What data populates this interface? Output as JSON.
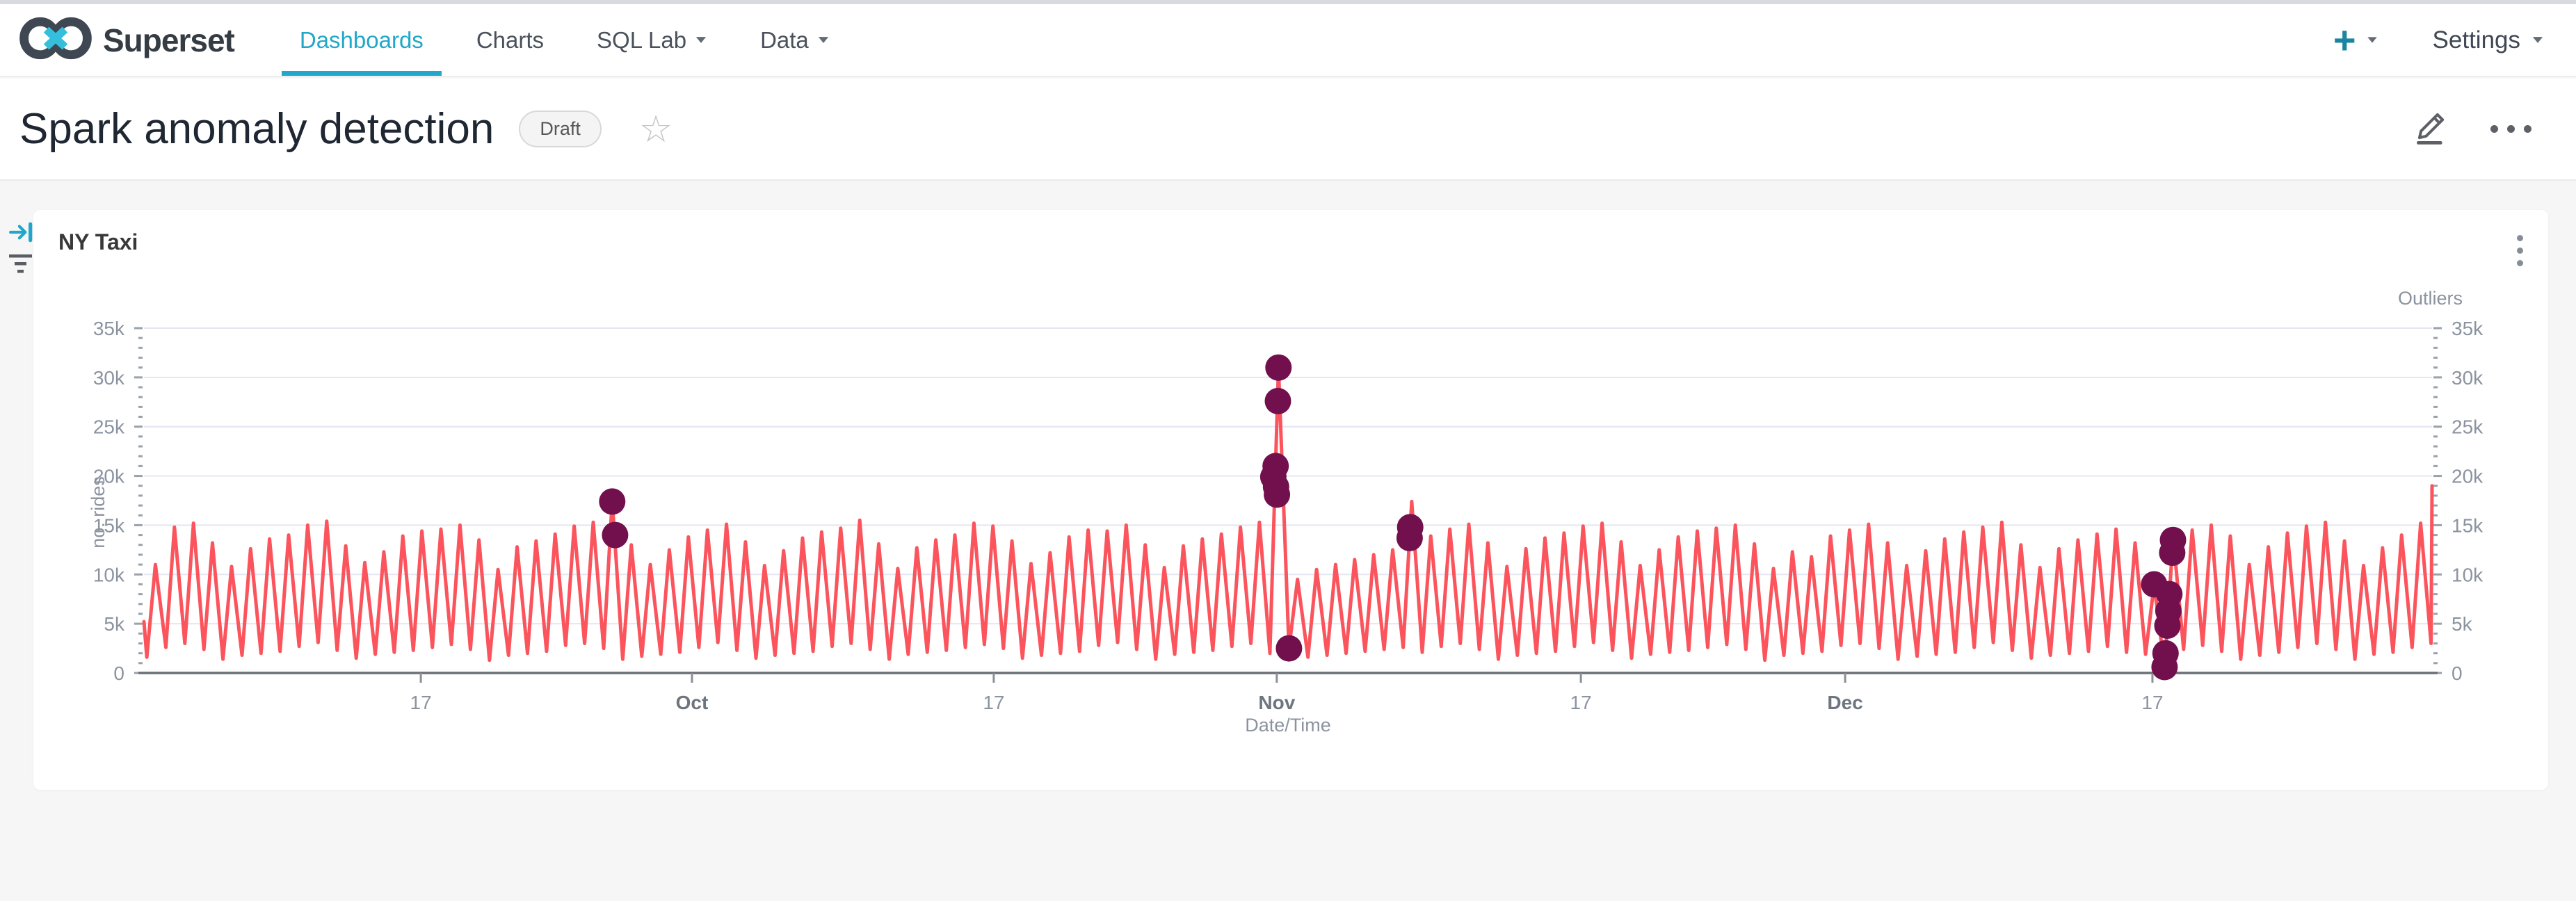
{
  "navbar": {
    "brand": "Superset",
    "items": [
      {
        "label": "Dashboards",
        "active": true
      },
      {
        "label": "Charts",
        "active": false
      },
      {
        "label": "SQL Lab",
        "active": false,
        "caret": true
      },
      {
        "label": "Data",
        "active": false,
        "caret": true
      }
    ],
    "plus_label": "+",
    "settings_label": "Settings"
  },
  "header": {
    "title": "Spark anomaly detection",
    "badge": "Draft",
    "star_icon": "star-outline",
    "edit_icon": "pencil",
    "more_icon": "ellipsis"
  },
  "chart_card": {
    "title": "NY Taxi",
    "menu_icon": "kebab-vertical"
  },
  "chart_data": {
    "type": "line",
    "title": "NY Taxi",
    "xlabel": "Date/Time",
    "ylabel": "no. rides",
    "y2label": "Outliers",
    "ylim_thousands": [
      0,
      35
    ],
    "grid": true,
    "legend": "none",
    "y_tick_labels": [
      "0",
      "5k",
      "10k",
      "15k",
      "20k",
      "25k",
      "30k",
      "35k"
    ],
    "x_ticks": [
      {
        "label": "17",
        "f": 0.121,
        "month": false
      },
      {
        "label": "Oct",
        "f": 0.2395,
        "month": true
      },
      {
        "label": "17",
        "f": 0.3714,
        "month": false
      },
      {
        "label": "Nov",
        "f": 0.4951,
        "month": true
      },
      {
        "label": "17",
        "f": 0.628,
        "month": false
      },
      {
        "label": "Dec",
        "f": 0.7435,
        "month": true
      },
      {
        "label": "17",
        "f": 0.8778,
        "month": false
      }
    ],
    "days_total": 120.2,
    "series": {
      "name": "no. rides",
      "color": "#fb545c",
      "stroke_width": 5,
      "start_value": 5.2,
      "trough_offset": 0.15,
      "peak_offset": 0.6,
      "daily_peaks_thousands": [
        11.0,
        14.8,
        15.2,
        13.2,
        10.8,
        12.6,
        13.6,
        14.0,
        15.0,
        15.4,
        12.9,
        11.2,
        12.3,
        13.9,
        14.4,
        14.6,
        15.0,
        13.5,
        10.5,
        12.8,
        13.4,
        14.1,
        14.9,
        15.3,
        17.5,
        13.0,
        11.0,
        12.5,
        13.8,
        14.5,
        15.1,
        13.3,
        10.9,
        12.4,
        13.7,
        14.3,
        14.7,
        15.5,
        13.1,
        10.6,
        12.7,
        13.5,
        14.0,
        15.2,
        14.9,
        13.4,
        11.1,
        12.2,
        13.8,
        14.5,
        14.4,
        15.0,
        13.0,
        10.7,
        12.9,
        13.6,
        14.1,
        14.8,
        15.3,
        31.0,
        9.5,
        10.5,
        11.0,
        11.5,
        12.0,
        12.5,
        17.4,
        13.9,
        14.6,
        15.1,
        13.2,
        10.8,
        12.6,
        13.7,
        14.2,
        14.9,
        15.2,
        13.3,
        10.9,
        12.5,
        13.8,
        14.4,
        14.7,
        15.0,
        13.1,
        10.6,
        12.3,
        11.8,
        13.9,
        14.5,
        15.1,
        13.2,
        10.9,
        12.4,
        13.6,
        14.3,
        14.8,
        15.3,
        13.0,
        10.7,
        12.6,
        13.5,
        14.1,
        14.6,
        13.2,
        9.0,
        13.8,
        14.5,
        15.0,
        13.9,
        11.0,
        12.8,
        14.2,
        14.9,
        15.3,
        13.4,
        10.9,
        12.7,
        14.0,
        15.2,
        19.0
      ],
      "daily_troughs_thousands": [
        1.6,
        2.6,
        3.0,
        2.4,
        1.4,
        1.8,
        2.0,
        2.2,
        2.7,
        3.1,
        2.3,
        1.5,
        1.9,
        2.1,
        2.3,
        2.6,
        2.9,
        2.4,
        1.3,
        1.8,
        2.0,
        2.2,
        2.8,
        3.0,
        2.5,
        1.4,
        1.7,
        1.9,
        2.1,
        2.6,
        3.1,
        2.3,
        1.5,
        1.8,
        2.0,
        2.2,
        2.7,
        3.0,
        2.4,
        1.4,
        1.9,
        2.1,
        2.3,
        2.6,
        2.9,
        2.5,
        1.5,
        1.8,
        2.0,
        2.2,
        2.8,
        3.1,
        2.4,
        1.4,
        1.9,
        2.1,
        2.3,
        2.7,
        3.0,
        2.0,
        2.5,
        1.6,
        1.8,
        2.0,
        2.2,
        2.4,
        2.6,
        2.1,
        2.7,
        3.0,
        2.4,
        1.4,
        1.8,
        2.0,
        2.2,
        2.7,
        3.1,
        2.3,
        1.5,
        1.9,
        2.1,
        2.3,
        2.6,
        2.9,
        2.4,
        1.3,
        1.8,
        2.0,
        2.2,
        2.8,
        3.0,
        2.5,
        1.4,
        1.7,
        1.9,
        2.1,
        2.6,
        3.1,
        2.3,
        1.5,
        1.8,
        2.0,
        2.2,
        2.7,
        2.1,
        1.9,
        0.5,
        2.4,
        2.8,
        2.2,
        1.4,
        1.8,
        2.1,
        2.6,
        3.0,
        2.4,
        1.4,
        1.9,
        2.1,
        2.6,
        3.0
      ]
    },
    "outliers": {
      "name": "Outliers",
      "color": "#72104e",
      "radius": 19,
      "points_day_value": [
        [
          24.6,
          17.4
        ],
        [
          24.75,
          14.0
        ],
        [
          59.6,
          31.0
        ],
        [
          59.57,
          27.6
        ],
        [
          59.45,
          21.0
        ],
        [
          59.33,
          19.9
        ],
        [
          59.47,
          18.9
        ],
        [
          59.52,
          18.1
        ],
        [
          60.15,
          2.5
        ],
        [
          66.52,
          14.8
        ],
        [
          66.49,
          13.7
        ],
        [
          105.6,
          9.0
        ],
        [
          106.15,
          0.6
        ],
        [
          106.2,
          2.0
        ],
        [
          106.3,
          4.8
        ],
        [
          106.35,
          6.3
        ],
        [
          106.4,
          8.0
        ],
        [
          106.55,
          12.2
        ],
        [
          106.59,
          13.5
        ]
      ]
    },
    "colors": {
      "grid": "#e4e6f2",
      "axis_line": "#6b6f76",
      "tick": "#9aa1ab",
      "label": "#8b93a0",
      "month_label": "#6d757f"
    }
  }
}
